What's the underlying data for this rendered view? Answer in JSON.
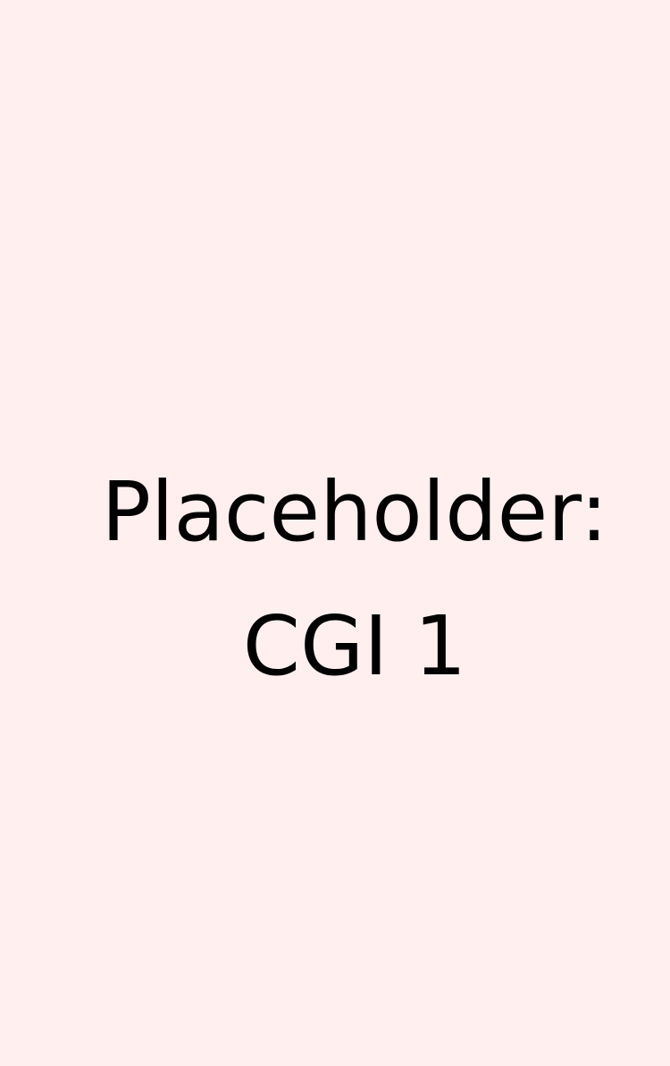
{
  "placeholder": {
    "line1": "Placeholder:",
    "line2": "CGI 1"
  },
  "colors": {
    "background": "#FFEFEF",
    "text": "#000000"
  }
}
